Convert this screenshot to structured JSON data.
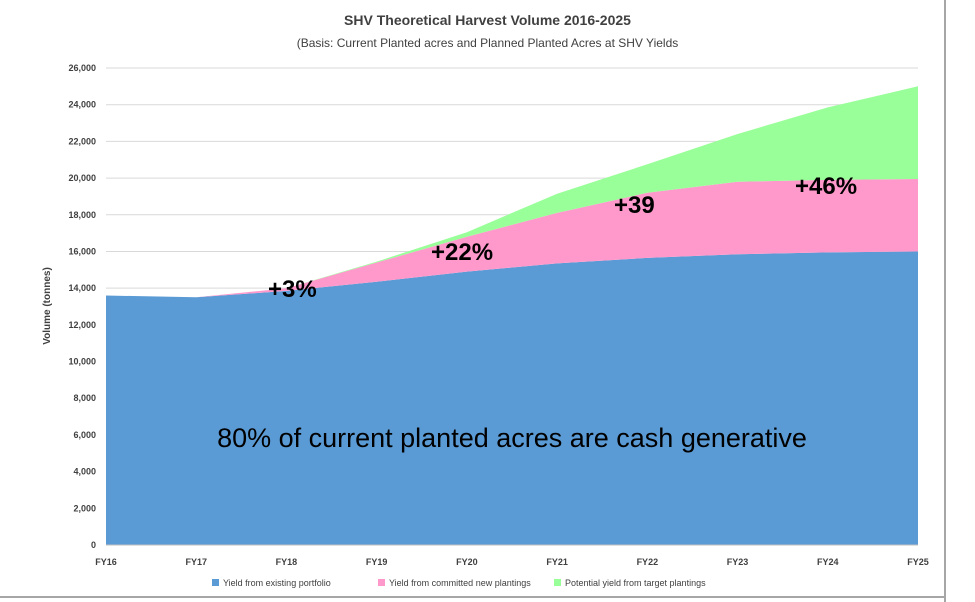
{
  "chart_data": {
    "type": "area",
    "stacked": true,
    "title": "SHV Theoretical Harvest Volume 2016-2025",
    "subtitle": "(Basis: Current Planted acres and Planned Planted Acres at SHV Yields",
    "ylabel": "Volume (tonnes)",
    "xlabel": "",
    "ylim": [
      0,
      26000
    ],
    "yticks": [
      0,
      2000,
      4000,
      6000,
      8000,
      10000,
      12000,
      14000,
      16000,
      18000,
      20000,
      22000,
      24000,
      26000
    ],
    "ytick_labels": [
      "0",
      "2,000",
      "4,000",
      "6,000",
      "8,000",
      "10,000",
      "12,000",
      "14,000",
      "16,000",
      "18,000",
      "20,000",
      "22,000",
      "24,000",
      "26,000"
    ],
    "categories": [
      "FY16",
      "FY17",
      "FY18",
      "FY19",
      "FY20",
      "FY21",
      "FY22",
      "FY23",
      "FY24",
      "FY25"
    ],
    "grid": true,
    "legend_position": "bottom",
    "series": [
      {
        "name": "Yield from existing portfolio",
        "color": "#5b9bd5",
        "values": [
          13600,
          13500,
          13850,
          14350,
          14900,
          15350,
          15650,
          15850,
          15950,
          16000
        ]
      },
      {
        "name": "Yield from committed new plantings",
        "color": "#ff99cc",
        "values": [
          0,
          0,
          150,
          1050,
          1900,
          2750,
          3550,
          3950,
          3950,
          3950
        ]
      },
      {
        "name": "Potential yield from target plantings",
        "color": "#99ff99",
        "values": [
          0,
          0,
          0,
          50,
          250,
          1050,
          1550,
          2600,
          3950,
          5050
        ]
      }
    ],
    "annotations": [
      "+3%",
      "+22%",
      "+39",
      "+46%"
    ],
    "center_text": "80% of current planted acres are cash generative"
  }
}
